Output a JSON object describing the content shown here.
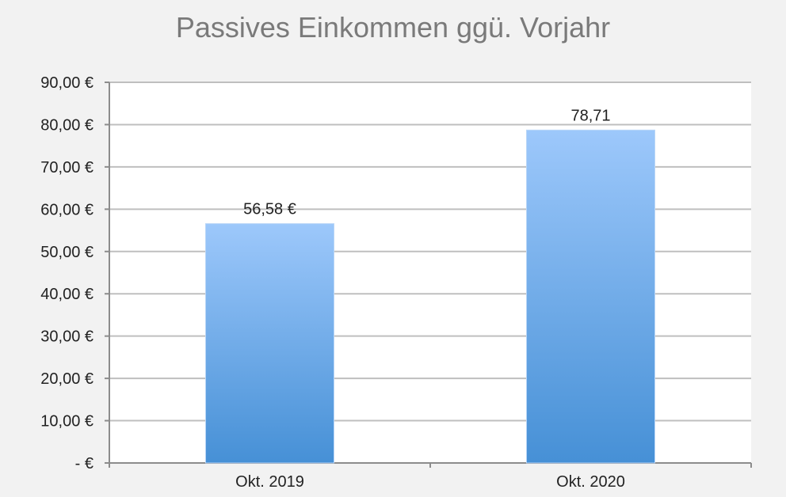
{
  "chart_data": {
    "type": "bar",
    "title": "Passives Einkommen ggü. Vorjahr",
    "xlabel": "",
    "ylabel": "",
    "categories": [
      "Okt. 2019",
      "Okt. 2020"
    ],
    "values": [
      56.58,
      78.71
    ],
    "data_labels": [
      "56,58 €",
      "78,71"
    ],
    "ylim": [
      0,
      90
    ],
    "yticks": [
      0,
      10,
      20,
      30,
      40,
      50,
      60,
      70,
      80,
      90
    ],
    "ytick_labels": [
      "-  €",
      "10,00 €",
      "20,00 €",
      "30,00 €",
      "40,00 €",
      "50,00 €",
      "60,00 €",
      "70,00 €",
      "80,00 €",
      "90,00 €"
    ],
    "grid": true,
    "legend": "none",
    "colors": {
      "bar_top": "#9dc8fb",
      "bar_bottom": "#4690d6",
      "grid": "#bfbfbf",
      "background": "#f2f2f2",
      "plot_background": "#ffffff",
      "title": "#7a7a7a"
    }
  }
}
